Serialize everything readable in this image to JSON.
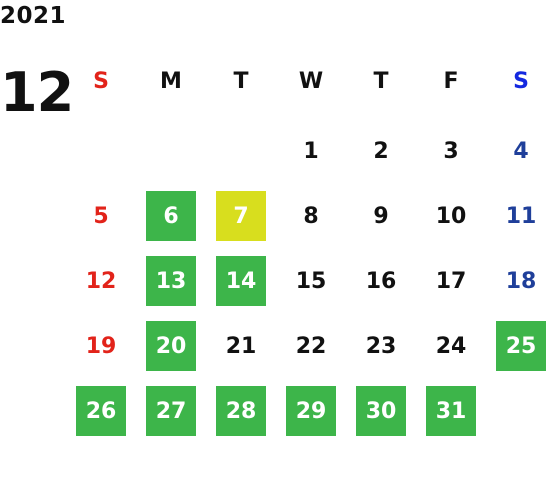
{
  "calendar": {
    "year": "2021",
    "month": "12",
    "weekdays": [
      "S",
      "M",
      "T",
      "W",
      "T",
      "F",
      "S"
    ],
    "weeks": [
      [
        {
          "day": ""
        },
        {
          "day": ""
        },
        {
          "day": ""
        },
        {
          "day": "1"
        },
        {
          "day": "2"
        },
        {
          "day": "3"
        },
        {
          "day": "4"
        }
      ],
      [
        {
          "day": "5"
        },
        {
          "day": "6",
          "highlight": "green"
        },
        {
          "day": "7",
          "highlight": "yellow"
        },
        {
          "day": "8"
        },
        {
          "day": "9"
        },
        {
          "day": "10"
        },
        {
          "day": "11"
        }
      ],
      [
        {
          "day": "12"
        },
        {
          "day": "13",
          "highlight": "green"
        },
        {
          "day": "14",
          "highlight": "green"
        },
        {
          "day": "15"
        },
        {
          "day": "16"
        },
        {
          "day": "17"
        },
        {
          "day": "18"
        }
      ],
      [
        {
          "day": "19"
        },
        {
          "day": "20",
          "highlight": "green"
        },
        {
          "day": "21"
        },
        {
          "day": "22"
        },
        {
          "day": "23"
        },
        {
          "day": "24"
        },
        {
          "day": "25",
          "highlight": "green"
        }
      ],
      [
        {
          "day": "26",
          "highlight": "green"
        },
        {
          "day": "27",
          "highlight": "green"
        },
        {
          "day": "28",
          "highlight": "green"
        },
        {
          "day": "29",
          "highlight": "green"
        },
        {
          "day": "30",
          "highlight": "green"
        },
        {
          "day": "31",
          "highlight": "green"
        },
        {
          "day": ""
        }
      ]
    ]
  },
  "colors": {
    "sunday": "#e2231a",
    "saturday": "#1f3f9a",
    "saturday_header": "#1428e0",
    "highlight_green": "#3db54a",
    "highlight_yellow": "#d8de1e"
  }
}
